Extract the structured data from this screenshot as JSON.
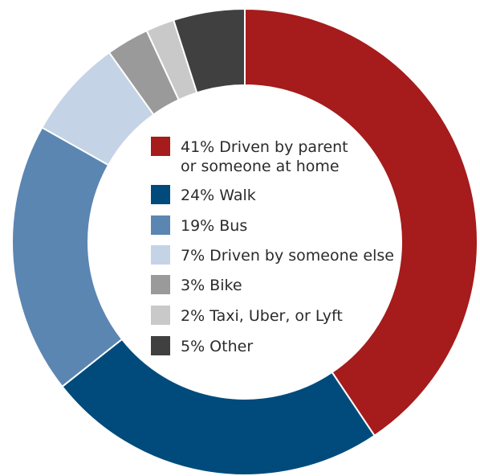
{
  "chart_data": {
    "type": "pie",
    "variant": "donut",
    "title": "",
    "series": [
      {
        "label_lines": [
          "41% Driven by parent",
          "or someone at home"
        ],
        "value": 41,
        "color": "#a61b1b"
      },
      {
        "label_lines": [
          "24% Walk"
        ],
        "value": 24,
        "color": "#004b7c"
      },
      {
        "label_lines": [
          "19% Bus"
        ],
        "value": 19,
        "color": "#5b86b2"
      },
      {
        "label_lines": [
          "7% Driven by someone else"
        ],
        "value": 7,
        "color": "#c5d3e6"
      },
      {
        "label_lines": [
          "3% Bike"
        ],
        "value": 3,
        "color": "#9a9a9a"
      },
      {
        "label_lines": [
          "2% Taxi, Uber, or Lyft"
        ],
        "value": 2,
        "color": "#c9c9c9"
      },
      {
        "label_lines": [
          "5% Other"
        ],
        "value": 5,
        "color": "#404040"
      }
    ],
    "legend": "center"
  }
}
